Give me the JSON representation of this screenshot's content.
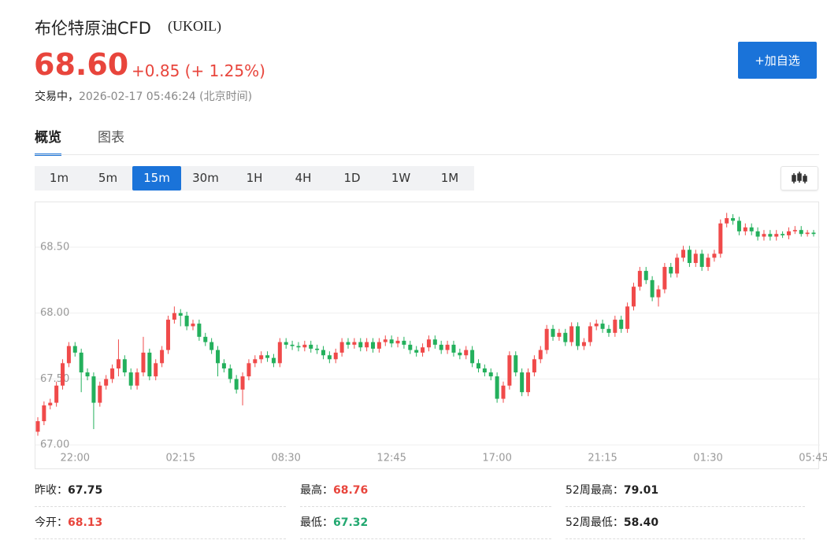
{
  "header": {
    "title": "布伦特原油CFD",
    "symbol": "(UKOIL)",
    "price": "68.60",
    "change": "+0.85",
    "change_pct": "(+ 1.25%)",
    "state": "交易中，",
    "time": "2026-02-17 05:46:24",
    "tz": "(北京时间)",
    "button": "+加自选"
  },
  "tabs": [
    "概览",
    "图表"
  ],
  "intervals": [
    "1m",
    "5m",
    "15m",
    "30m",
    "1H",
    "4H",
    "1D",
    "1W",
    "1M"
  ],
  "active_interval": 2,
  "chart_data": {
    "type": "candlestick",
    "up_color": "#f04a4a",
    "down_color": "#23b05c",
    "grid": true,
    "ylim": [
      66.81,
      68.84
    ],
    "yticks": [
      {
        "value": 67,
        "label": "67.00"
      },
      {
        "value": 67.5,
        "label": "67.50"
      },
      {
        "value": 68,
        "label": "68.00"
      },
      {
        "value": 68.5,
        "label": "68.50"
      }
    ],
    "categories": [
      null,
      null,
      null,
      null,
      null,
      null,
      "22:00",
      null,
      null,
      null,
      null,
      null,
      null,
      null,
      null,
      null,
      null,
      null,
      null,
      null,
      null,
      null,
      null,
      "02:15",
      null,
      null,
      null,
      null,
      null,
      null,
      null,
      null,
      null,
      null,
      null,
      null,
      null,
      null,
      null,
      null,
      "08:30",
      null,
      null,
      null,
      null,
      null,
      null,
      null,
      null,
      null,
      null,
      null,
      null,
      null,
      null,
      null,
      null,
      "12:45",
      null,
      null,
      null,
      null,
      null,
      null,
      null,
      null,
      null,
      null,
      null,
      null,
      null,
      null,
      null,
      null,
      "17:00",
      null,
      null,
      null,
      null,
      null,
      null,
      null,
      null,
      null,
      null,
      null,
      null,
      null,
      null,
      null,
      null,
      "21:15",
      null,
      null,
      null,
      null,
      null,
      null,
      null,
      null,
      null,
      null,
      null,
      null,
      null,
      null,
      null,
      null,
      "01:30",
      null,
      null,
      null,
      null,
      null,
      null,
      null,
      null,
      null,
      null,
      null,
      null,
      null,
      null,
      null,
      null,
      "05:45"
    ],
    "open": [
      67.1,
      67.18,
      67.3,
      67.32,
      67.45,
      67.62,
      67.75,
      67.7,
      67.55,
      67.52,
      67.32,
      67.45,
      67.5,
      67.58,
      67.65,
      67.55,
      67.45,
      67.55,
      67.7,
      67.52,
      67.62,
      67.72,
      67.95,
      68.0,
      67.98,
      67.9,
      67.92,
      67.82,
      67.78,
      67.72,
      67.62,
      67.58,
      67.5,
      67.42,
      67.52,
      67.62,
      67.65,
      67.68,
      67.66,
      67.62,
      67.78,
      67.76,
      67.75,
      67.74,
      67.76,
      67.73,
      67.72,
      67.68,
      67.65,
      67.7,
      67.78,
      67.76,
      67.78,
      67.74,
      67.78,
      67.73,
      67.78,
      67.8,
      67.77,
      67.79,
      67.76,
      67.72,
      67.7,
      67.74,
      67.8,
      67.76,
      67.72,
      67.76,
      67.7,
      67.68,
      67.72,
      67.62,
      67.58,
      67.55,
      67.52,
      67.35,
      67.45,
      67.68,
      67.55,
      67.4,
      67.55,
      67.65,
      67.72,
      67.88,
      67.82,
      67.85,
      67.78,
      67.9,
      67.75,
      67.78,
      67.9,
      67.92,
      67.88,
      67.85,
      67.95,
      67.88,
      68.05,
      68.2,
      68.32,
      68.25,
      68.12,
      68.18,
      68.35,
      68.3,
      68.42,
      68.48,
      68.38,
      68.45,
      68.35,
      68.42,
      68.45,
      68.68,
      68.72,
      68.7,
      68.62,
      68.65,
      68.62,
      68.58,
      68.6,
      68.58,
      68.6,
      68.59,
      68.62,
      68.63,
      68.6,
      68.61
    ],
    "high": [
      67.21,
      67.33,
      67.35,
      67.48,
      67.65,
      67.78,
      67.78,
      67.73,
      67.58,
      67.55,
      67.48,
      67.53,
      67.61,
      67.8,
      67.68,
      67.58,
      67.58,
      67.82,
      67.73,
      67.65,
      67.75,
      67.98,
      68.05,
      68.03,
      68.01,
      67.95,
      67.95,
      67.85,
      67.81,
      67.75,
      67.65,
      67.61,
      67.53,
      67.55,
      67.65,
      67.68,
      67.71,
      67.71,
      67.69,
      67.81,
      67.81,
      67.79,
      67.78,
      67.79,
      67.79,
      67.76,
      67.75,
      67.71,
      67.73,
      67.81,
      67.81,
      67.81,
      67.81,
      67.81,
      67.81,
      67.81,
      67.83,
      67.83,
      67.82,
      67.82,
      67.79,
      67.75,
      67.77,
      67.83,
      67.83,
      67.79,
      67.79,
      67.79,
      67.73,
      67.75,
      67.75,
      67.65,
      67.61,
      67.58,
      67.55,
      67.48,
      67.71,
      67.71,
      67.58,
      67.58,
      67.68,
      67.75,
      67.91,
      67.91,
      67.88,
      67.88,
      67.93,
      67.93,
      67.81,
      67.93,
      67.95,
      67.95,
      67.91,
      67.98,
      67.98,
      68.08,
      68.23,
      68.35,
      68.35,
      68.28,
      68.21,
      68.38,
      68.38,
      68.45,
      68.51,
      68.51,
      68.48,
      68.48,
      68.45,
      68.48,
      68.71,
      68.76,
      68.75,
      68.73,
      68.68,
      68.68,
      68.65,
      68.63,
      68.63,
      68.63,
      68.62,
      68.65,
      68.66,
      68.66,
      68.63,
      68.63
    ],
    "low": [
      67.07,
      67.15,
      67.27,
      67.29,
      67.42,
      67.59,
      67.67,
      67.4,
      67.49,
      67.12,
      67.29,
      67.42,
      67.47,
      67.52,
      67.52,
      67.42,
      67.42,
      67.52,
      67.49,
      67.49,
      67.59,
      67.69,
      67.92,
      67.9,
      67.87,
      67.87,
      67.79,
      67.75,
      67.69,
      67.52,
      67.55,
      67.47,
      67.39,
      67.3,
      67.49,
      67.59,
      67.62,
      67.63,
      67.59,
      67.59,
      67.73,
      67.72,
      67.71,
      67.71,
      67.7,
      67.69,
      67.65,
      67.62,
      67.62,
      67.67,
      67.73,
      67.73,
      67.71,
      67.71,
      67.7,
      67.7,
      67.75,
      67.74,
      67.74,
      67.73,
      67.69,
      67.67,
      67.67,
      67.71,
      67.73,
      67.69,
      67.69,
      67.67,
      67.65,
      67.65,
      67.59,
      67.55,
      67.52,
      67.49,
      67.32,
      67.32,
      67.42,
      67.52,
      67.37,
      67.37,
      67.52,
      67.62,
      67.69,
      67.79,
      67.79,
      67.75,
      67.75,
      67.72,
      67.72,
      67.75,
      67.87,
      67.85,
      67.82,
      67.82,
      67.85,
      67.85,
      68.02,
      68.17,
      68.22,
      68.09,
      68.05,
      68.15,
      68.27,
      68.27,
      68.39,
      68.35,
      68.35,
      68.32,
      68.32,
      68.39,
      68.42,
      68.65,
      68.67,
      68.59,
      68.59,
      68.59,
      68.55,
      68.55,
      68.55,
      68.55,
      68.57,
      68.56,
      68.6,
      68.58,
      68.58,
      68.58
    ],
    "close": [
      67.18,
      67.3,
      67.32,
      67.45,
      67.62,
      67.75,
      67.7,
      67.55,
      67.52,
      67.32,
      67.45,
      67.5,
      67.58,
      67.65,
      67.55,
      67.45,
      67.55,
      67.7,
      67.52,
      67.62,
      67.72,
      67.95,
      68.0,
      67.98,
      67.9,
      67.92,
      67.82,
      67.78,
      67.72,
      67.62,
      67.58,
      67.5,
      67.42,
      67.52,
      67.62,
      67.65,
      67.68,
      67.66,
      67.62,
      67.78,
      67.76,
      67.75,
      67.74,
      67.76,
      67.73,
      67.72,
      67.68,
      67.65,
      67.7,
      67.78,
      67.76,
      67.78,
      67.74,
      67.78,
      67.73,
      67.78,
      67.8,
      67.77,
      67.79,
      67.76,
      67.72,
      67.7,
      67.74,
      67.8,
      67.76,
      67.72,
      67.76,
      67.7,
      67.68,
      67.72,
      67.62,
      67.58,
      67.55,
      67.52,
      67.35,
      67.45,
      67.68,
      67.55,
      67.4,
      67.55,
      67.65,
      67.72,
      67.88,
      67.82,
      67.85,
      67.78,
      67.9,
      67.75,
      67.78,
      67.9,
      67.92,
      67.88,
      67.85,
      67.95,
      67.88,
      68.05,
      68.2,
      68.32,
      68.25,
      68.12,
      68.18,
      68.35,
      68.3,
      68.42,
      68.48,
      68.38,
      68.45,
      68.35,
      68.42,
      68.45,
      68.68,
      68.72,
      68.7,
      68.62,
      68.65,
      68.62,
      68.58,
      68.6,
      68.58,
      68.6,
      68.59,
      68.62,
      68.63,
      68.6,
      68.61,
      68.6
    ]
  },
  "stats": [
    {
      "label": "昨收：",
      "value": "67.75",
      "color": "#222222"
    },
    {
      "label": "最高：",
      "value": "68.76",
      "color": "#e8453c"
    },
    {
      "label": "52周最高：",
      "value": "79.01",
      "color": "#222222"
    },
    {
      "label": "今开：",
      "value": "68.13",
      "color": "#e8453c"
    },
    {
      "label": "最低：",
      "value": "67.32",
      "color": "#22a870"
    },
    {
      "label": "52周最低：",
      "value": "58.40",
      "color": "#222222"
    }
  ]
}
